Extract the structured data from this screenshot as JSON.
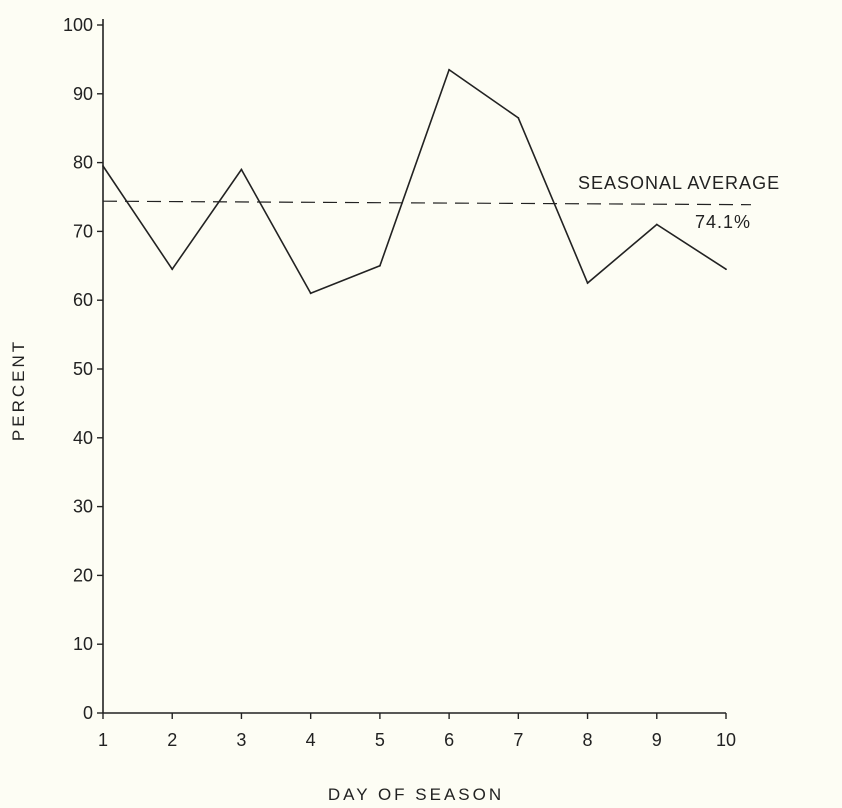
{
  "chart_data": {
    "type": "line",
    "title": "",
    "xlabel": "DAY OF SEASON",
    "ylabel": "PERCENT",
    "x": [
      1,
      2,
      3,
      4,
      5,
      6,
      7,
      8,
      9,
      10
    ],
    "x_tick_labels": [
      "1",
      "2",
      "3",
      "4",
      "5",
      "6",
      "7",
      "8",
      "9",
      "10"
    ],
    "y_tick_labels": [
      "0",
      "10",
      "20",
      "30",
      "40",
      "50",
      "60",
      "70",
      "80",
      "90",
      "100"
    ],
    "ylim": [
      0,
      100
    ],
    "xlim": [
      1,
      10
    ],
    "grid": false,
    "series": [
      {
        "values": [
          79.5,
          64.5,
          79,
          61,
          65,
          93.5,
          86.5,
          62.5,
          71,
          64.5
        ]
      }
    ],
    "reference_line": {
      "value": 74.1,
      "label": "SEASONAL AVERAGE",
      "value_label": "74.1%",
      "style": "dashed"
    },
    "colors": {
      "line": "#222222",
      "background": "#fdfdf4"
    }
  }
}
